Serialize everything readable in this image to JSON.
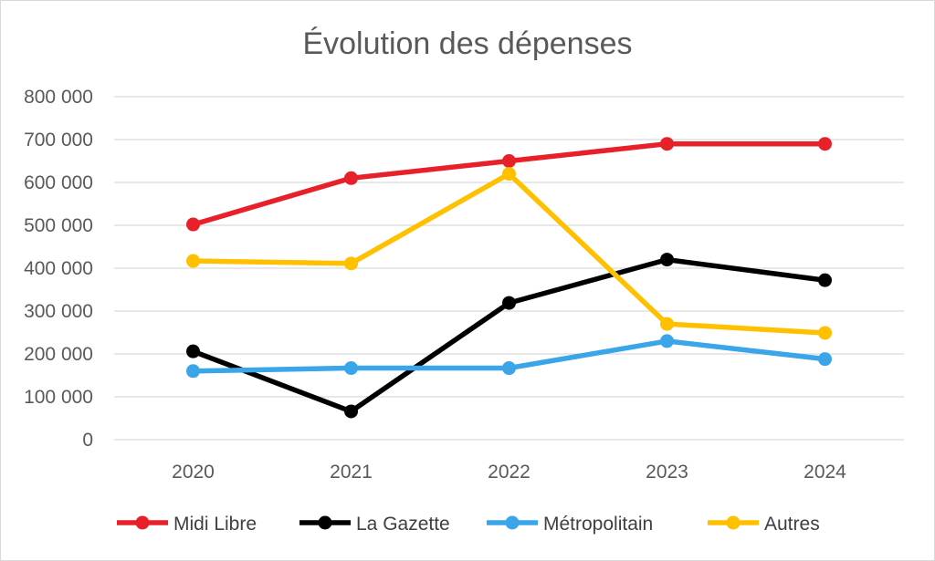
{
  "chart_data": {
    "type": "line",
    "title": "Évolution des dépenses",
    "xlabel": "",
    "ylabel": "",
    "categories": [
      "2020",
      "2021",
      "2022",
      "2023",
      "2024"
    ],
    "ylim": [
      0,
      800000
    ],
    "yticks": [
      0,
      100000,
      200000,
      300000,
      400000,
      500000,
      600000,
      700000,
      800000
    ],
    "ytick_labels": [
      "0",
      "100 000",
      "200 000",
      "300 000",
      "400 000",
      "500 000",
      "600 000",
      "700 000",
      "800 000"
    ],
    "grid": "horizontal",
    "legend_position": "bottom",
    "series": [
      {
        "name": "Midi Libre",
        "color": "#e8202a",
        "values": [
          502000,
          610000,
          650000,
          690000,
          690000
        ]
      },
      {
        "name": "La Gazette",
        "color": "#000000",
        "values": [
          206000,
          66000,
          319000,
          420000,
          372000
        ]
      },
      {
        "name": "Métropolitain",
        "color": "#3aa5e8",
        "values": [
          160000,
          167000,
          167000,
          230000,
          188000
        ]
      },
      {
        "name": "Autres",
        "color": "#ffc000",
        "values": [
          417000,
          411000,
          620000,
          270000,
          249000
        ]
      }
    ]
  }
}
